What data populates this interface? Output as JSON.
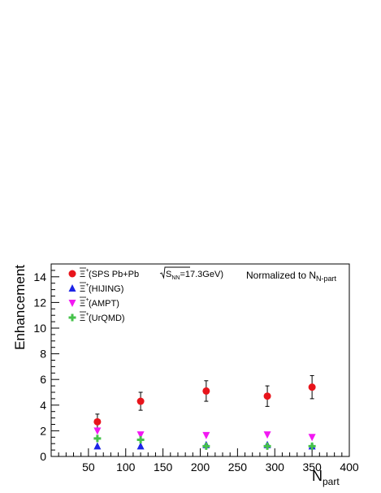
{
  "chart_data": {
    "type": "scatter",
    "xlabel_main": "N",
    "xlabel_sub": "part",
    "ylabel": "Enhancement",
    "xlim": [
      0,
      400
    ],
    "ylim": [
      0,
      15
    ],
    "x_ticks": [
      50,
      100,
      150,
      200,
      250,
      300,
      350,
      400
    ],
    "y_ticks": [
      0,
      2,
      4,
      6,
      8,
      10,
      12,
      14
    ],
    "annotation_main": "Normalized to N",
    "annotation_sub": "N-part",
    "legend_placement": "top-left",
    "series": [
      {
        "legend_label": "(SPS Pb+Pb",
        "legend_extra": "S",
        "legend_extra_sub": "NN",
        "legend_extra_tail": "=17.3GeV)",
        "marker": "circle",
        "color": "#e8141b",
        "points": [
          {
            "x": 62,
            "y": 2.7,
            "err": 0.6
          },
          {
            "x": 120,
            "y": 4.3,
            "err": 0.7
          },
          {
            "x": 208,
            "y": 5.1,
            "err": 0.8
          },
          {
            "x": 290,
            "y": 4.7,
            "err": 0.8
          },
          {
            "x": 350,
            "y": 5.4,
            "err": 0.9
          }
        ]
      },
      {
        "legend_label": "(HIJING)",
        "marker": "triangle-up",
        "color": "#1c24e6",
        "points": [
          {
            "x": 62,
            "y": 0.8
          },
          {
            "x": 120,
            "y": 0.8
          },
          {
            "x": 208,
            "y": 0.9
          },
          {
            "x": 290,
            "y": 0.9
          },
          {
            "x": 350,
            "y": 0.8
          }
        ]
      },
      {
        "legend_label": "(AMPT)",
        "marker": "triangle-down",
        "color": "#f218f2",
        "points": [
          {
            "x": 62,
            "y": 2.0
          },
          {
            "x": 120,
            "y": 1.7
          },
          {
            "x": 208,
            "y": 1.65
          },
          {
            "x": 290,
            "y": 1.7
          },
          {
            "x": 350,
            "y": 1.5
          }
        ]
      },
      {
        "legend_label": "(UrQMD)",
        "marker": "cross",
        "color": "#45c24a",
        "points": [
          {
            "x": 62,
            "y": 1.4
          },
          {
            "x": 120,
            "y": 1.3
          },
          {
            "x": 208,
            "y": 0.8
          },
          {
            "x": 290,
            "y": 0.8
          },
          {
            "x": 350,
            "y": 0.8
          }
        ]
      }
    ],
    "particle_symbol": "Ξ",
    "particle_sup": "+"
  }
}
